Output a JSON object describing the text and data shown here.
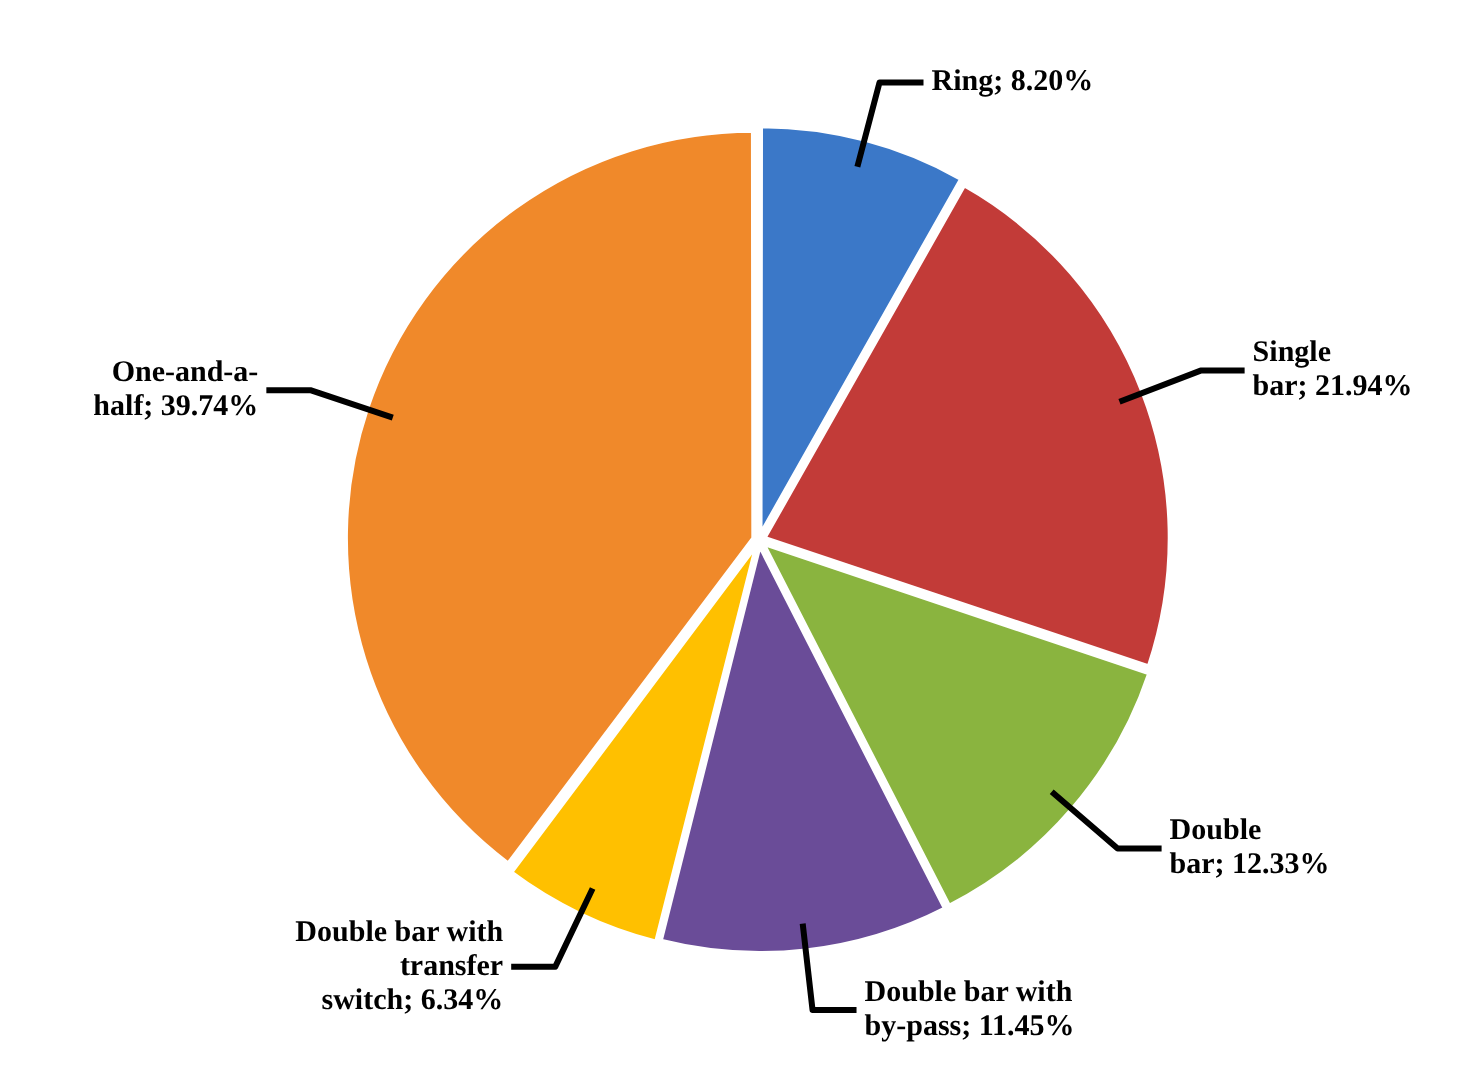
{
  "chart_data": {
    "type": "pie",
    "categories": [
      "Ring",
      "Single bar",
      "Double bar",
      "Double bar with by-pass",
      "Double bar with transfer switch",
      "One-and-a-half"
    ],
    "values": [
      8.2,
      21.94,
      12.33,
      11.45,
      6.34,
      39.74
    ],
    "value_labels": [
      "8.20%",
      "21.94%",
      "12.33%",
      "11.45%",
      "6.34%",
      "39.74%"
    ],
    "colors": [
      "#3b78c8",
      "#c23b38",
      "#8ab43f",
      "#6a4c98",
      "#ffc000",
      "#f0892a"
    ],
    "data_labels": true,
    "legend": false
  }
}
